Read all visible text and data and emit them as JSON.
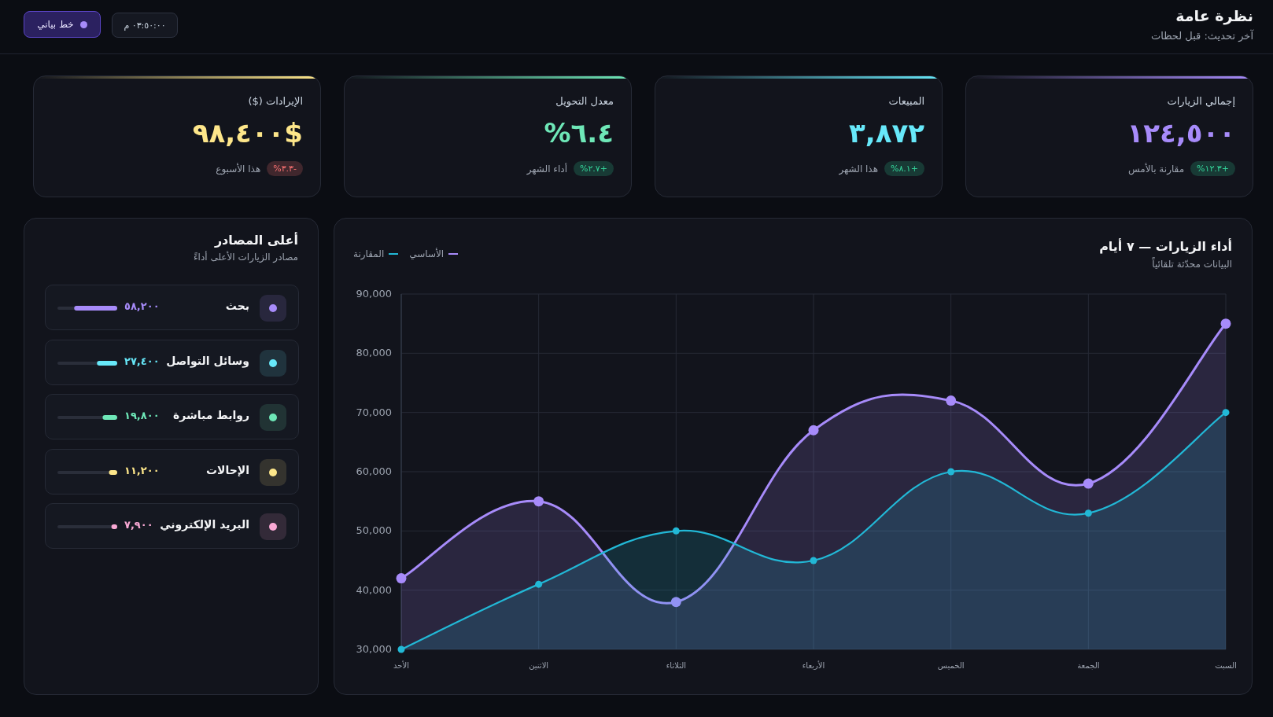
{
  "chart_data": [
    {
      "type": "other",
      "title": "نظرة عامة",
      "subtitle": "آخر تحديث: قبل لحظات",
      "annotations": [
        "٠٣:٥٠:٠٠ م",
        "خط بياني"
      ]
    },
    {
      "type": "other",
      "title": "إجمالي الزيارات",
      "annotations": [
        "١٢٤,٥٠٠",
        "+١٢.٣%",
        "مقارنة بالأمس"
      ],
      "colors": [
        "#a78bfa",
        "#34d399"
      ]
    },
    {
      "type": "other",
      "title": "المبيعات",
      "annotations": [
        "٣,٨٧٢",
        "+٨.١%",
        "هذا الشهر"
      ],
      "colors": [
        "#67e8f9",
        "#34d399"
      ]
    },
    {
      "type": "other",
      "title": "معدل التحويل",
      "annotations": [
        "٦.٤%",
        "+٢.٧%",
        "أداء الشهر"
      ],
      "colors": [
        "#6ee7b7",
        "#34d399"
      ]
    },
    {
      "type": "other",
      "title": "الإيرادات ($)",
      "annotations": [
        "$٩٨,٤٠٠",
        "-٣.٣%",
        "هذا الأسبوع"
      ],
      "colors": [
        "#fde68a",
        "#f87171"
      ]
    },
    {
      "type": "area",
      "title": "أداء الزيارات — ٧ أيام",
      "subtitle": "البيانات محدّثة تلقائياً",
      "categories": [
        "الأحد",
        "الاثنين",
        "الثلاثاء",
        "الأربعاء",
        "الخميس",
        "الجمعة",
        "السبت"
      ],
      "series": [
        {
          "name": "الأساسي",
          "color": "#a78bfa",
          "values": [
            42000,
            55000,
            38000,
            67000,
            72000,
            58000,
            85000
          ]
        },
        {
          "name": "المقارنة",
          "color": "#22b8d6",
          "values": [
            30000,
            41000,
            50000,
            45000,
            60000,
            53000,
            70000
          ]
        }
      ],
      "ylim": [
        30000,
        90000
      ],
      "yticks": [
        {
          "value": 30000,
          "label": "30,000"
        },
        {
          "value": 40000,
          "label": "40,000"
        },
        {
          "value": 50000,
          "label": "50,000"
        },
        {
          "value": 60000,
          "label": "60,000"
        },
        {
          "value": 70000,
          "label": "70,000"
        },
        {
          "value": 80000,
          "label": "80,000"
        },
        {
          "value": 90000,
          "label": "90,000"
        }
      ],
      "grid": true,
      "legend": "top left",
      "marker": "circle"
    },
    {
      "type": "bar",
      "orientation": "horizontal",
      "title": "أعلى المصادر",
      "subtitle": "مصادر الزيارات الأعلى أداءً",
      "categories": [
        "بحث",
        "وسائل التواصل",
        "روابط مباشرة",
        "الإحالات",
        "البريد الإلكتروني"
      ],
      "values": [
        58200,
        27400,
        19800,
        11200,
        7900
      ],
      "value_labels": [
        "٥٨,٢٠٠",
        "٢٧,٤٠٠",
        "١٩,٨٠٠",
        "١١,٢٠٠",
        "٧,٩٠٠"
      ],
      "colors": [
        "#a78bfa",
        "#67e8f9",
        "#6ee7b7",
        "#fde68a",
        "#f9a8d4"
      ]
    }
  ]
}
